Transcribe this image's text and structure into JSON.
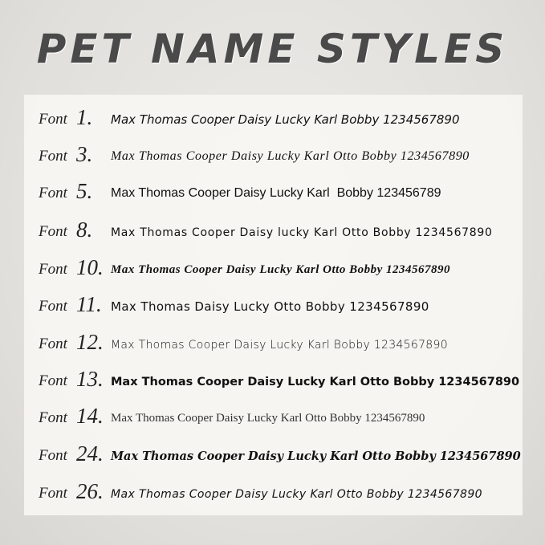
{
  "title": "PET NAME STYLES",
  "font_label": "Font",
  "rows": [
    {
      "number": "1.",
      "sample": "Max Thomas Cooper Daisy Lucky Karl Bobby 1234567890"
    },
    {
      "number": "3.",
      "sample": "Max Thomas Cooper Daisy Lucky Karl Otto Bobby 1234567890"
    },
    {
      "number": "5.",
      "sample": "Max Thomas Cooper Daisy Lucky Karl  Bobby 123456789"
    },
    {
      "number": "8.",
      "sample": "Max Thomas Cooper Daisy lucky Karl Otto Bobby 1234567890"
    },
    {
      "number": "10.",
      "sample": "Max Thomas Cooper Daisy Lucky Karl Otto Bobby 1234567890"
    },
    {
      "number": "11.",
      "sample": "Max Thomas Daisy Lucky Otto Bobby 1234567890"
    },
    {
      "number": "12.",
      "sample": "Max Thomas Cooper Daisy Lucky Karl Bobby 1234567890"
    },
    {
      "number": "13.",
      "sample": "Max Thomas Cooper Daisy Lucky Karl Otto Bobby 1234567890"
    },
    {
      "number": "14.",
      "sample": "Max Thomas Cooper Daisy Lucky Karl Otto Bobby 1234567890"
    },
    {
      "number": "24.",
      "sample": "Max Thomas Cooper Daisy Lucky Karl Otto Bobby 1234567890"
    },
    {
      "number": "26.",
      "sample": "Max Thomas Cooper Daisy Lucky Karl Otto Bobby 1234567890"
    }
  ]
}
